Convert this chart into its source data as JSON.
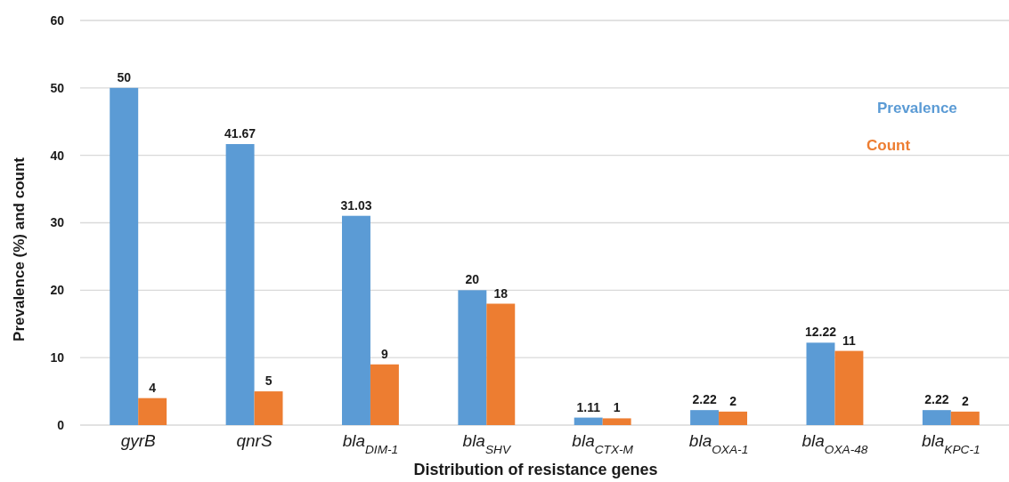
{
  "chart_data": {
    "type": "bar",
    "xlabel": "Distribution of resistance genes",
    "ylabel": "Prevalence (%) and count",
    "categories": [
      "gyrB",
      "qnrS",
      "bla$_{DIM-1}$",
      "bla$_{SHV}$",
      "bla$_{CTX-M}$",
      "bla$_{OXA-1}$",
      "bla$_{OXA-48}$",
      "bla$_{KPC-1}$"
    ],
    "series": [
      {
        "name": "Prevalence",
        "color": "#5b9bd5",
        "values": [
          50,
          41.67,
          31.03,
          20,
          1.11,
          2.22,
          12.22,
          2.22
        ]
      },
      {
        "name": "Count",
        "color": "#ed7d31",
        "values": [
          4,
          5,
          9,
          18,
          1,
          2,
          11,
          2
        ]
      }
    ],
    "ylim": [
      0,
      60
    ],
    "yticks": [
      0,
      10,
      20,
      30,
      40,
      50,
      60
    ],
    "grid": "y",
    "legend": "top right",
    "data_labels": true
  }
}
